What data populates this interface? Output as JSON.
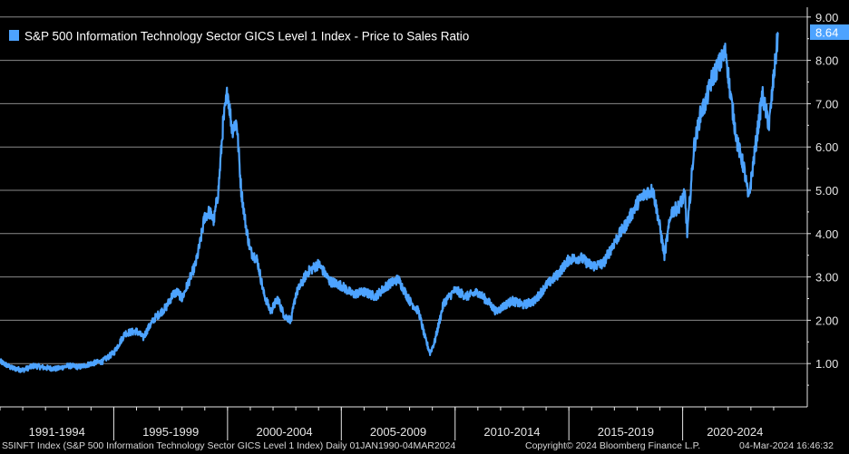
{
  "colors": {
    "background": "#000000",
    "series": "#4da3ff",
    "grid": "#8a8a8a",
    "text": "#e6e6e6"
  },
  "chart_data": {
    "type": "line",
    "title": "",
    "xlabel": "",
    "ylabel": "",
    "ylim": [
      0,
      9
    ],
    "xlim": [
      1990.0,
      2024.6
    ],
    "y_ticks": [
      1,
      2,
      3,
      4,
      5,
      6,
      7,
      8,
      9
    ],
    "y_tick_labels": [
      "1.00",
      "2.00",
      "3.00",
      "4.00",
      "5.00",
      "6.00",
      "7.00",
      "8.00",
      "9.00"
    ],
    "x_periods": [
      {
        "label": "1991-1994",
        "start": 1990.0,
        "end": 1995.0
      },
      {
        "label": "1995-1999",
        "start": 1995.0,
        "end": 2000.0
      },
      {
        "label": "2000-2004",
        "start": 2000.0,
        "end": 2005.0
      },
      {
        "label": "2005-2009",
        "start": 2005.0,
        "end": 2010.0
      },
      {
        "label": "2010-2014",
        "start": 2010.0,
        "end": 2015.0
      },
      {
        "label": "2015-2019",
        "start": 2015.0,
        "end": 2020.0
      },
      {
        "label": "2020-2024",
        "start": 2020.0,
        "end": 2024.6
      }
    ],
    "grid": true,
    "legend_position": "top-left",
    "last_value_label": "8.64",
    "series": [
      {
        "name": "S&P 500 Information Technology Sector GICS Level 1 Index - Price to Sales Ratio",
        "x": [
          1990.0,
          1990.5,
          1991.0,
          1991.5,
          1992.0,
          1992.5,
          1993.0,
          1993.5,
          1994.0,
          1994.5,
          1995.0,
          1995.5,
          1996.0,
          1996.3,
          1996.5,
          1996.8,
          1997.0,
          1997.3,
          1997.6,
          1997.8,
          1998.0,
          1998.3,
          1998.6,
          1998.8,
          1999.0,
          1999.2,
          1999.4,
          1999.6,
          1999.8,
          2000.0,
          2000.2,
          2000.4,
          2000.6,
          2000.8,
          2001.0,
          2001.3,
          2001.6,
          2001.9,
          2002.2,
          2002.5,
          2002.8,
          2003.0,
          2003.5,
          2004.0,
          2004.5,
          2005.0,
          2005.5,
          2006.0,
          2006.5,
          2007.0,
          2007.5,
          2008.0,
          2008.4,
          2008.7,
          2008.9,
          2009.1,
          2009.5,
          2010.0,
          2010.5,
          2011.0,
          2011.5,
          2011.8,
          2012.2,
          2012.5,
          2013.0,
          2013.5,
          2014.0,
          2014.5,
          2015.0,
          2015.5,
          2016.0,
          2016.5,
          2017.0,
          2017.5,
          2018.0,
          2018.4,
          2018.7,
          2018.95,
          2019.2,
          2019.5,
          2019.8,
          2020.1,
          2020.2,
          2020.5,
          2020.8,
          2021.0,
          2021.3,
          2021.6,
          2021.9,
          2022.1,
          2022.4,
          2022.7,
          2022.9,
          2023.2,
          2023.5,
          2023.8,
          2024.0,
          2024.2
        ],
        "values": [
          1.05,
          0.9,
          0.85,
          0.95,
          0.9,
          0.88,
          0.95,
          0.92,
          1.0,
          1.05,
          1.25,
          1.7,
          1.75,
          1.6,
          1.8,
          2.05,
          2.15,
          2.3,
          2.6,
          2.65,
          2.5,
          2.9,
          3.3,
          3.8,
          4.4,
          4.5,
          4.3,
          5.0,
          6.5,
          7.3,
          6.4,
          6.6,
          5.0,
          4.2,
          3.6,
          3.4,
          2.6,
          2.2,
          2.5,
          2.1,
          2.0,
          2.6,
          3.1,
          3.3,
          2.9,
          2.8,
          2.6,
          2.65,
          2.55,
          2.8,
          2.95,
          2.45,
          2.2,
          1.55,
          1.25,
          1.5,
          2.4,
          2.7,
          2.55,
          2.65,
          2.4,
          2.2,
          2.35,
          2.45,
          2.35,
          2.45,
          2.8,
          3.05,
          3.4,
          3.45,
          3.25,
          3.3,
          3.8,
          4.2,
          4.7,
          4.95,
          5.0,
          4.3,
          3.5,
          4.5,
          4.6,
          4.9,
          4.0,
          6.0,
          6.8,
          7.0,
          7.6,
          7.9,
          8.2,
          7.2,
          6.1,
          5.5,
          4.8,
          6.0,
          7.2,
          6.5,
          7.6,
          8.64
        ]
      }
    ]
  },
  "footer": {
    "left": "S5INFT Index (S&P 500 Information Technology Sector GICS Level 1 Index)  Daily 01JAN1990-04MAR2024",
    "middle": "Copyright© 2024 Bloomberg Finance L.P.",
    "right": "04-Mar-2024 16:46:32"
  }
}
